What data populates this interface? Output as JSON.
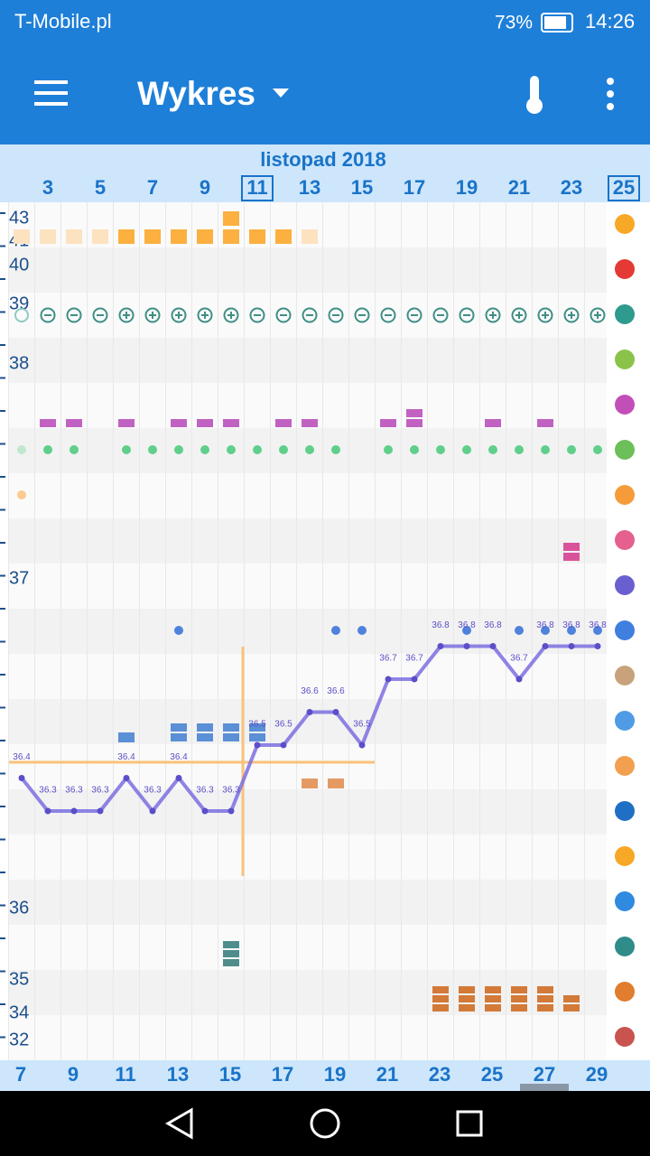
{
  "status_bar": {
    "carrier": "T-Mobile.pl",
    "battery": "73%",
    "time": "14:26"
  },
  "app_bar": {
    "title": "Wykres"
  },
  "chart": {
    "month": "listopad 2018",
    "top_days": [
      3,
      5,
      7,
      9,
      11,
      13,
      15,
      17,
      19,
      21,
      23,
      25
    ],
    "left_axis": [
      43,
      41,
      40,
      39,
      38,
      37,
      36,
      35,
      34,
      32
    ],
    "bottom_days": [
      7,
      9,
      11,
      13,
      15,
      17,
      19,
      21,
      23,
      25,
      27,
      29
    ],
    "temperature": {
      "color": "#7b6fe0",
      "days": [
        2,
        3,
        4,
        5,
        6,
        7,
        8,
        9,
        10,
        11,
        12,
        13,
        14,
        15,
        16,
        17,
        18,
        19,
        20,
        21,
        22,
        23,
        24
      ],
      "values": [
        36.4,
        36.3,
        36.3,
        36.3,
        36.4,
        36.3,
        36.4,
        36.3,
        36.3,
        36.5,
        36.5,
        36.6,
        36.6,
        36.5,
        36.7,
        36.7,
        36.8,
        36.8,
        36.8,
        36.7,
        36.8,
        36.8,
        36.8
      ]
    }
  }
}
